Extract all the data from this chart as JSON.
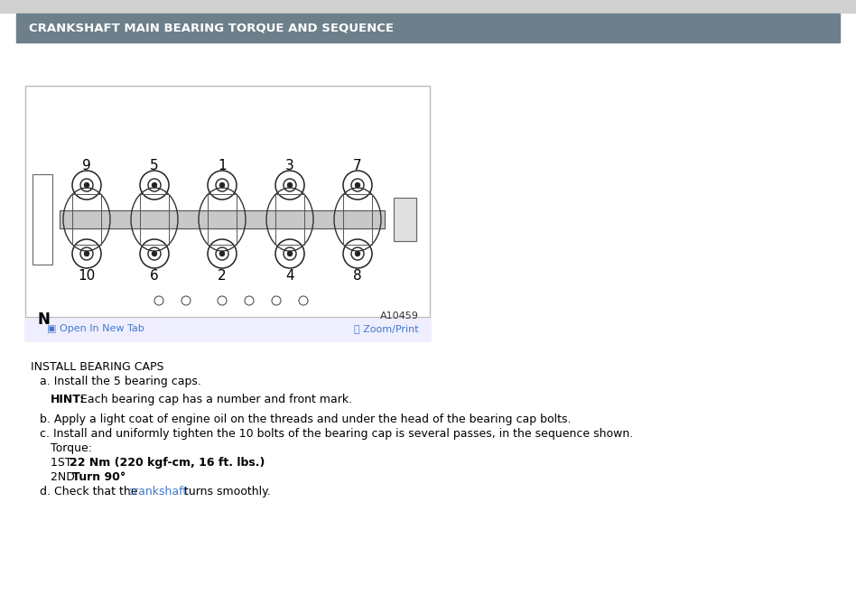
{
  "background_color": "#ffffff",
  "page_top_bg": "#e8e8e8",
  "header_bg_color": "#6d7f8b",
  "header_text": "CRANKSHAFT MAIN BEARING TORQUE AND SEQUENCE",
  "header_text_color": "#ffffff",
  "header_fontsize": 9.5,
  "image_box_border_color": "#bbbbbb",
  "open_in_new_tab": "Open In New Tab",
  "zoom_print": "Zoom/Print",
  "ref_code": "A10459",
  "N_label": "N",
  "section_title": "INSTALL BEARING CAPS",
  "diagram_numbers_top": [
    "9",
    "5",
    "1",
    "3",
    "7"
  ],
  "diagram_numbers_bottom": [
    "10",
    "6",
    "2",
    "4",
    "8"
  ],
  "font_size_body": 9,
  "font_size_section": 9,
  "link_color": "#4477cc",
  "toolbar_bg": "#eeeeff"
}
